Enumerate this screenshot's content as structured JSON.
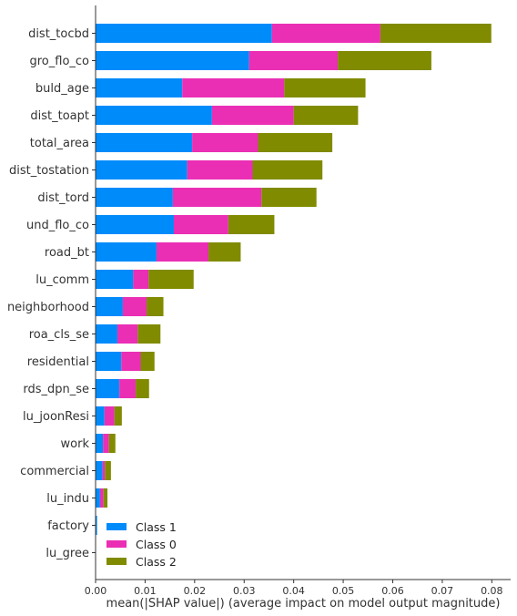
{
  "chart_data": {
    "type": "bar",
    "orientation": "horizontal",
    "stacked": true,
    "categories": [
      "dist_tocbd",
      "gro_flo_co",
      "buld_age",
      "dist_toapt",
      "total_area",
      "dist_tostation",
      "dist_tord",
      "und_flo_co",
      "road_bt",
      "lu_comm",
      "neighborhood",
      "roa_cls_se",
      "residential",
      "rds_dpn_se",
      "lu_joonResi",
      "work",
      "commercial",
      "lu_indu",
      "factory",
      "lu_gree"
    ],
    "series": [
      {
        "name": "Class 1",
        "color": "#008bfb",
        "values": [
          0.0356,
          0.031,
          0.0175,
          0.0235,
          0.0195,
          0.0185,
          0.0156,
          0.0158,
          0.0123,
          0.0076,
          0.0055,
          0.0044,
          0.0052,
          0.0048,
          0.0018,
          0.0015,
          0.0014,
          0.0009,
          0.0003,
          0.0
        ]
      },
      {
        "name": "Class 0",
        "color": "#ea2fb4",
        "values": [
          0.0219,
          0.0179,
          0.0206,
          0.0165,
          0.0133,
          0.0132,
          0.0179,
          0.011,
          0.0105,
          0.0031,
          0.0048,
          0.0041,
          0.0039,
          0.0033,
          0.002,
          0.0012,
          0.0005,
          0.0007,
          0.0,
          0.0
        ]
      },
      {
        "name": "Class 2",
        "color": "#808b00",
        "values": [
          0.0224,
          0.0189,
          0.0164,
          0.013,
          0.015,
          0.0141,
          0.0111,
          0.0093,
          0.0065,
          0.0091,
          0.0034,
          0.0046,
          0.0028,
          0.0027,
          0.0015,
          0.0013,
          0.0012,
          0.0008,
          0.0,
          0.0
        ]
      }
    ],
    "xlabel": "mean(|SHAP value|) (average impact on model output magnitude)",
    "ylabel": "",
    "title": "",
    "xlim": [
      0,
      0.0838
    ],
    "xticks": [
      0.0,
      0.01,
      0.02,
      0.03,
      0.04,
      0.05,
      0.06,
      0.07,
      0.08
    ],
    "xtick_labels": [
      "0.00",
      "0.01",
      "0.02",
      "0.03",
      "0.04",
      "0.05",
      "0.06",
      "0.07",
      "0.08"
    ],
    "grid": false,
    "legend": {
      "position": "bottom-left",
      "entries": [
        "Class 1",
        "Class 0",
        "Class 2"
      ]
    }
  }
}
